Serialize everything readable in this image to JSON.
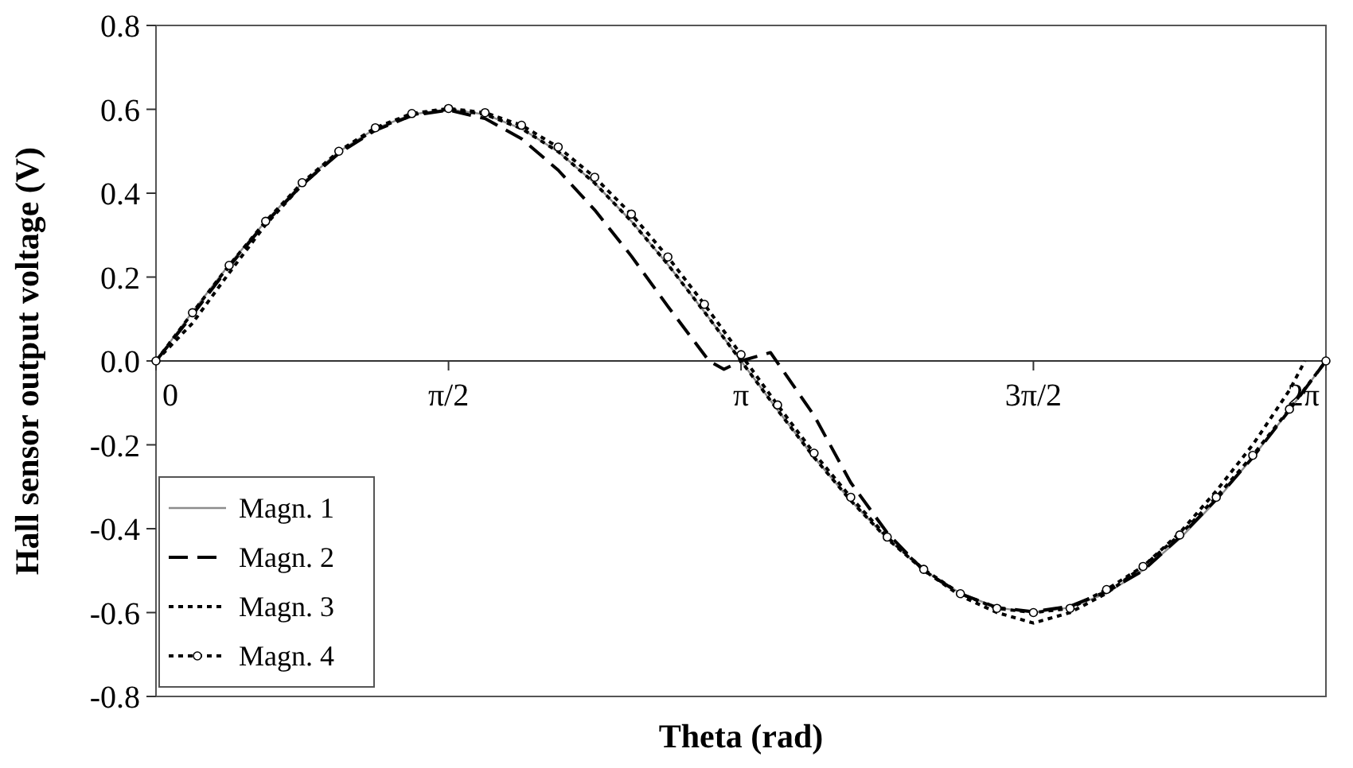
{
  "chart_data": {
    "type": "line",
    "xlabel": "Theta (rad)",
    "ylabel": "Hall sensor output voltage (V)",
    "x": [
      0,
      0.196,
      0.393,
      0.589,
      0.785,
      0.982,
      1.178,
      1.374,
      1.571,
      1.767,
      1.963,
      2.16,
      2.356,
      2.553,
      2.749,
      2.945,
      3.142,
      3.338,
      3.534,
      3.731,
      3.927,
      4.123,
      4.32,
      4.516,
      4.712,
      4.909,
      5.105,
      5.301,
      5.498,
      5.694,
      5.89,
      6.087,
      6.283
    ],
    "xlim": [
      0,
      6.283
    ],
    "xticks": [
      0,
      {
        "value": 1.571,
        "label": "π/2"
      },
      {
        "value": 3.142,
        "label": "π"
      },
      {
        "value": 4.712,
        "label": "3π/2"
      },
      {
        "value": 6.283,
        "label": "2π"
      }
    ],
    "ylim": [
      -0.8,
      0.8
    ],
    "yticks": [
      {
        "value": -0.8,
        "label": "-0.8"
      },
      {
        "value": -0.6,
        "label": "-0.6"
      },
      {
        "value": -0.4,
        "label": "-0.4"
      },
      {
        "value": -0.2,
        "label": "-0.2"
      },
      {
        "value": 0,
        "label": "0.0"
      },
      {
        "value": 0.2,
        "label": "0.2"
      },
      {
        "value": 0.4,
        "label": "0.4"
      },
      {
        "value": 0.6,
        "label": "0.6"
      },
      {
        "value": 0.8,
        "label": "0.8"
      }
    ],
    "grid": false,
    "legend": "bottom left",
    "series": [
      {
        "name": "Magn. 1",
        "color": "#8c8c8c",
        "line_style": "solid",
        "marker": "none",
        "values": [
          0,
          0.117,
          0.23,
          0.333,
          0.424,
          0.499,
          0.554,
          0.588,
          0.6,
          0.588,
          0.554,
          0.499,
          0.424,
          0.333,
          0.23,
          0.117,
          0,
          -0.117,
          -0.23,
          -0.333,
          -0.424,
          -0.499,
          -0.554,
          -0.588,
          -0.6,
          -0.588,
          -0.554,
          -0.499,
          -0.424,
          -0.333,
          -0.23,
          -0.117,
          0
        ]
      },
      {
        "name": "Magn. 2",
        "color": "#000000",
        "line_style": "dashed",
        "marker": "none",
        "x": [
          0,
          0.196,
          0.393,
          0.589,
          0.785,
          0.982,
          1.178,
          1.374,
          1.571,
          1.767,
          1.963,
          2.16,
          2.356,
          2.553,
          2.749,
          2.97,
          3.05,
          3.142,
          3.3,
          3.534,
          3.731,
          3.927,
          4.123,
          4.32,
          4.516,
          4.712,
          4.909,
          5.105,
          5.301,
          5.498,
          5.694,
          5.89,
          6.087,
          6.283
        ],
        "values": [
          0,
          0.11,
          0.225,
          0.33,
          0.42,
          0.495,
          0.55,
          0.585,
          0.598,
          0.578,
          0.53,
          0.455,
          0.36,
          0.25,
          0.13,
          0,
          -0.02,
          0,
          0.02,
          -0.13,
          -0.29,
          -0.41,
          -0.5,
          -0.555,
          -0.588,
          -0.598,
          -0.585,
          -0.55,
          -0.5,
          -0.42,
          -0.33,
          -0.23,
          -0.117,
          0
        ]
      },
      {
        "name": "Magn. 3",
        "color": "#000000",
        "line_style": "dotted",
        "marker": "none",
        "x": [
          0,
          0.196,
          0.393,
          0.589,
          0.785,
          0.982,
          1.178,
          1.374,
          1.571,
          1.767,
          1.963,
          2.16,
          2.356,
          2.553,
          2.749,
          2.945,
          3.142,
          3.338,
          3.534,
          3.731,
          3.927,
          4.123,
          4.32,
          4.516,
          4.712,
          4.909,
          5.105,
          5.301,
          5.498,
          5.694,
          5.89,
          6.087,
          6.17
        ],
        "values": [
          0,
          0.09,
          0.21,
          0.325,
          0.42,
          0.497,
          0.553,
          0.587,
          0.6,
          0.588,
          0.554,
          0.499,
          0.424,
          0.333,
          0.23,
          0.117,
          0,
          -0.117,
          -0.23,
          -0.333,
          -0.424,
          -0.499,
          -0.56,
          -0.6,
          -0.625,
          -0.6,
          -0.554,
          -0.49,
          -0.41,
          -0.31,
          -0.2,
          -0.07,
          0
        ]
      },
      {
        "name": "Magn. 4",
        "color": "#000000",
        "line_style": "dotted",
        "marker": "circle",
        "values": [
          0,
          0.115,
          0.228,
          0.333,
          0.425,
          0.5,
          0.556,
          0.59,
          0.602,
          0.592,
          0.562,
          0.51,
          0.438,
          0.35,
          0.248,
          0.135,
          0.015,
          -0.105,
          -0.22,
          -0.325,
          -0.42,
          -0.497,
          -0.555,
          -0.59,
          -0.6,
          -0.59,
          -0.545,
          -0.49,
          -0.415,
          -0.325,
          -0.225,
          -0.115,
          0
        ]
      }
    ]
  }
}
